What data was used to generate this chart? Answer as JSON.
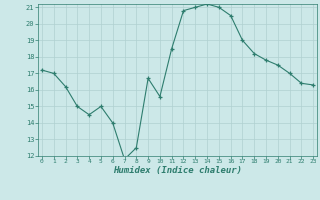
{
  "x": [
    0,
    1,
    2,
    3,
    4,
    5,
    6,
    7,
    8,
    9,
    10,
    11,
    12,
    13,
    14,
    15,
    16,
    17,
    18,
    19,
    20,
    21,
    22,
    23
  ],
  "y": [
    17.2,
    17.0,
    16.2,
    15.0,
    14.5,
    15.0,
    14.0,
    11.8,
    12.5,
    16.7,
    15.6,
    18.5,
    20.8,
    21.0,
    21.2,
    21.0,
    20.5,
    19.0,
    18.2,
    17.8,
    17.5,
    17.0,
    16.4,
    16.3
  ],
  "xlabel": "Humidex (Indice chaleur)",
  "ylim": [
    12,
    21
  ],
  "xlim": [
    -0.3,
    23.3
  ],
  "yticks": [
    12,
    13,
    14,
    15,
    16,
    17,
    18,
    19,
    20,
    21
  ],
  "xtick_labels": [
    "0",
    "1",
    "2",
    "3",
    "4",
    "5",
    "6",
    "7",
    "8",
    "9",
    "10",
    "11",
    "12",
    "13",
    "14",
    "15",
    "16",
    "17",
    "18",
    "19",
    "20",
    "21",
    "22",
    "23"
  ],
  "line_color": "#2e7d6e",
  "marker": "+",
  "bg_color": "#cce8e8",
  "grid_color": "#b0d0d0",
  "title": ""
}
